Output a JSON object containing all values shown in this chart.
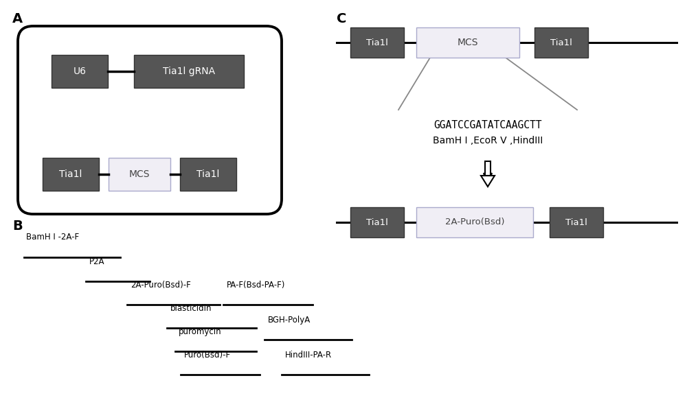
{
  "bg_color": "#ffffff",
  "dark_box_color": "#555555",
  "mcs_box_color": "#f0eef5",
  "mcs_border_color": "#aaaacc",
  "line_color": "#111111",
  "panel_A_label": "A",
  "panel_B_label": "B",
  "panel_C_label": "C"
}
